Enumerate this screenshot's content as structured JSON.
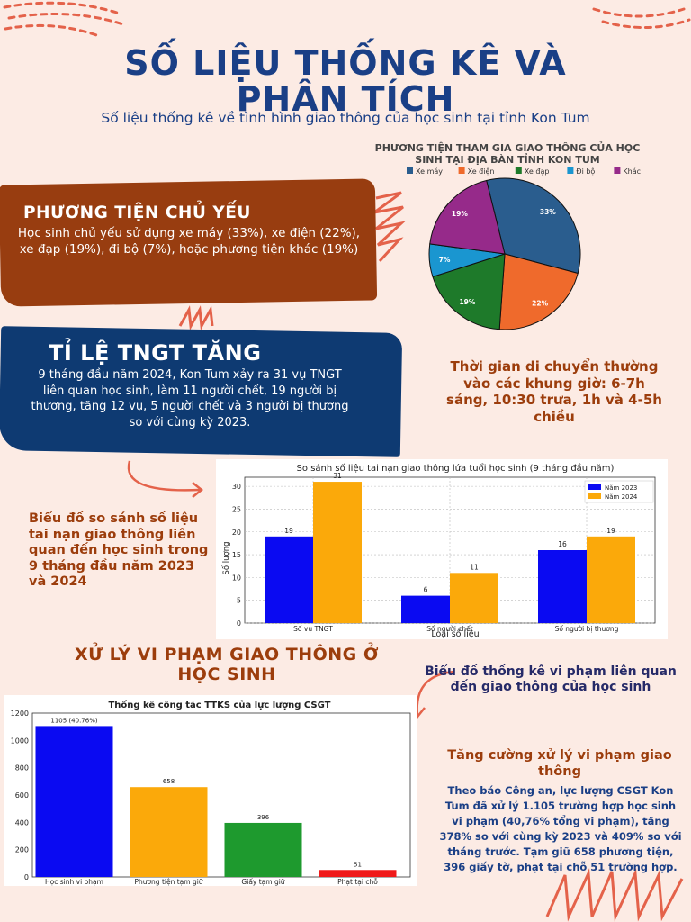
{
  "header": {
    "title_line1": "SỐ LIỆU THỐNG KÊ VÀ",
    "title_line2": "PHÂN TÍCH",
    "subtitle": "Số liệu thống kê về tình hình giao thông của học sinh tại tỉnh Kon Tum"
  },
  "vehicles": {
    "heading": "PHƯƠNG TIỆN CHỦ YẾU",
    "body": "Học sinh chủ yếu sử dụng xe máy (33%), xe điện (22%), xe đạp (19%), đi bộ (7%), hoặc phương tiện khác (19%)"
  },
  "accidents": {
    "heading": "TỈ LỆ TNGT TĂNG",
    "body": "9 tháng đầu năm 2024, Kon Tum xảy ra 31 vụ TNGT liên quan học sinh, làm 11 người chết, 19 người bị thương, tăng 12 vụ, 5 người chết và 3 người bị thương so với cùng kỳ 2023."
  },
  "travel_time": "Thời gian di chuyển thường vào các khung giờ: 6-7h sáng, 10:30 trưa, 1h và 4-5h chiều",
  "compare_caption": "Biểu đồ so sánh số liệu tai nạn giao thông liên quan đến học sinh trong 9 tháng đầu năm 2023 và 2024",
  "violations": {
    "section_title_line1": "XỬ LÝ VI PHẠM GIAO THÔNG Ở",
    "section_title_line2": "HỌC SINH",
    "stat_caption": "Biểu đồ thống kê vi phạm liên quan đến giao thông của học sinh",
    "enforce_title": "Tăng cường xử lý vi phạm giao thông",
    "enforce_body": "Theo báo Công an, lực lượng CSGT Kon Tum đã xử lý 1.105 trường hợp học sinh vi phạm (40,76% tổng vi phạm), tăng 378% so với cùng kỳ 2023 và 409% so với tháng trước. Tạm giữ 658 phương tiện, 396 giấy tờ, phạt tại chỗ 51 trường hợp."
  },
  "chart_data": [
    {
      "type": "pie",
      "title_line1": "PHƯƠNG TIỆN THAM GIA GIAO THÔNG CỦA HỌC",
      "title_line2": "SINH TẠI ĐỊA BÀN TỈNH KON TUM",
      "legend_position": "top",
      "slices": [
        {
          "label": "Xe máy",
          "value": 33,
          "display": "33%",
          "color": "#2a5d8e"
        },
        {
          "label": "Xe điện",
          "value": 22,
          "display": "22%",
          "color": "#ef6a2c"
        },
        {
          "label": "Xe đạp",
          "value": 19,
          "display": "19%",
          "color": "#1e7a2a"
        },
        {
          "label": "Đi bộ",
          "value": 7,
          "display": "7%",
          "color": "#1a96d0"
        },
        {
          "label": "Khác",
          "value": 19,
          "display": "19%",
          "color": "#962a8a"
        }
      ]
    },
    {
      "type": "bar",
      "title": "So sánh số liệu tai nạn giao thông lứa tuổi học sinh (9 tháng đầu năm)",
      "xlabel": "Loại số liệu",
      "ylabel": "Số lượng",
      "ylim": [
        0,
        32
      ],
      "yticks": [
        0,
        5,
        10,
        15,
        20,
        25,
        30
      ],
      "grid": true,
      "legend_position": "top-right",
      "categories": [
        "Số vụ TNGT",
        "Số người chết",
        "Số người bị thương"
      ],
      "series": [
        {
          "name": "Năm 2023",
          "values": [
            19,
            6,
            16
          ],
          "color": "#0a0af2"
        },
        {
          "name": "Năm 2024",
          "values": [
            31,
            11,
            19
          ],
          "color": "#fba90a"
        }
      ]
    },
    {
      "type": "bar",
      "title": "Thống kê công tác TTKS của lực lượng CSGT",
      "ylim": [
        0,
        1200
      ],
      "yticks": [
        0,
        200,
        400,
        600,
        800,
        1000,
        1200
      ],
      "categories": [
        "Học sinh vi phạm",
        "Phương tiện tạm giữ",
        "Giấy tạm giữ",
        "Phạt tại chỗ"
      ],
      "values": [
        1105,
        658,
        396,
        51
      ],
      "labels": [
        "1105 (40.76%)",
        "658",
        "396",
        "51"
      ],
      "colors": [
        "#0a0af2",
        "#fba90a",
        "#1e9a2e",
        "#f01a1a"
      ]
    }
  ]
}
